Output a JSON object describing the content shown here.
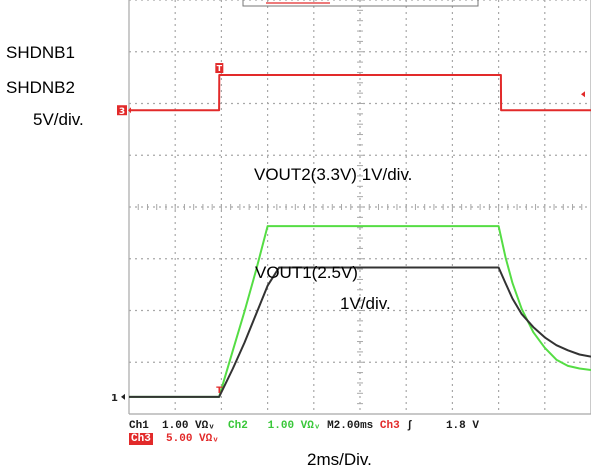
{
  "labels": {
    "shdn1": "SHDNB1",
    "shdn2": "SHDNB2",
    "ch3_scale": "5V/div.",
    "vout2": "VOUT2(3.3V) 1V/div.",
    "vout1_name": "VOUT1(2.5V)",
    "vout1_scale": "1V/div.",
    "time_scale": "2ms/Div."
  },
  "status_bar": {
    "ch1_label": "Ch1",
    "ch1_scale": "1.00 VΩᵥ",
    "ch2_label": "Ch2",
    "ch2_scale": "1.00 VΩᵥ",
    "timebase": "M2.00ms",
    "trig_source": "Ch3",
    "trig_slope": "ʃ",
    "trig_level": "1.8 V",
    "ch3_label": "Ch3",
    "ch3_scale": "5.00 VΩᵥ"
  },
  "markers": {
    "ch3_ref": "3",
    "trigger": "T",
    "ch12_ref": "1"
  },
  "colors": {
    "grid": "#a8a8a8",
    "ch3_shdn": "#e22a2a",
    "ch2_vout2": "#55dd44",
    "ch1_vout1": "#333333",
    "black_marker": "#222222",
    "status_green": "#39c739"
  },
  "chart_data": {
    "type": "line",
    "title": "",
    "xlabel": "2ms/Div.",
    "ylabel": "",
    "x_unit": "ms",
    "xlim": [
      0,
      20
    ],
    "ylim_divisions": [
      0,
      8
    ],
    "grid": true,
    "series": [
      {
        "name": "SHDNB1/SHDNB2",
        "key": "shdn",
        "unit": "V",
        "ref_div": 5.87,
        "volts_per_div": 5,
        "points": [
          [
            0,
            0
          ],
          [
            3.9,
            0
          ],
          [
            3.91,
            3.4
          ],
          [
            16.1,
            3.4
          ],
          [
            16.11,
            0
          ],
          [
            20,
            0
          ]
        ]
      },
      {
        "name": "VOUT2(3.3V)",
        "key": "vout2",
        "unit": "V",
        "ref_div": 0.33,
        "volts_per_div": 1,
        "points": [
          [
            0,
            0
          ],
          [
            3.9,
            0
          ],
          [
            4.5,
            0.9
          ],
          [
            5.0,
            1.65
          ],
          [
            5.5,
            2.45
          ],
          [
            6.0,
            3.3
          ],
          [
            10.0,
            3.3
          ],
          [
            16.0,
            3.3
          ],
          [
            16.3,
            2.7
          ],
          [
            16.6,
            2.2
          ],
          [
            17.0,
            1.7
          ],
          [
            17.5,
            1.25
          ],
          [
            18.0,
            0.95
          ],
          [
            18.5,
            0.72
          ],
          [
            19.0,
            0.6
          ],
          [
            19.5,
            0.55
          ],
          [
            20.0,
            0.52
          ]
        ]
      },
      {
        "name": "VOUT1(2.5V)",
        "key": "vout1",
        "unit": "V",
        "ref_div": 0.33,
        "volts_per_div": 1,
        "points": [
          [
            0,
            0
          ],
          [
            3.9,
            0
          ],
          [
            4.5,
            0.55
          ],
          [
            5.0,
            1.05
          ],
          [
            5.5,
            1.6
          ],
          [
            6.0,
            2.15
          ],
          [
            6.5,
            2.5
          ],
          [
            10.0,
            2.5
          ],
          [
            16.0,
            2.5
          ],
          [
            16.3,
            2.2
          ],
          [
            16.6,
            1.9
          ],
          [
            17.0,
            1.6
          ],
          [
            17.5,
            1.35
          ],
          [
            18.0,
            1.15
          ],
          [
            18.5,
            1.0
          ],
          [
            19.0,
            0.9
          ],
          [
            19.5,
            0.82
          ],
          [
            20.0,
            0.78
          ]
        ]
      }
    ]
  }
}
